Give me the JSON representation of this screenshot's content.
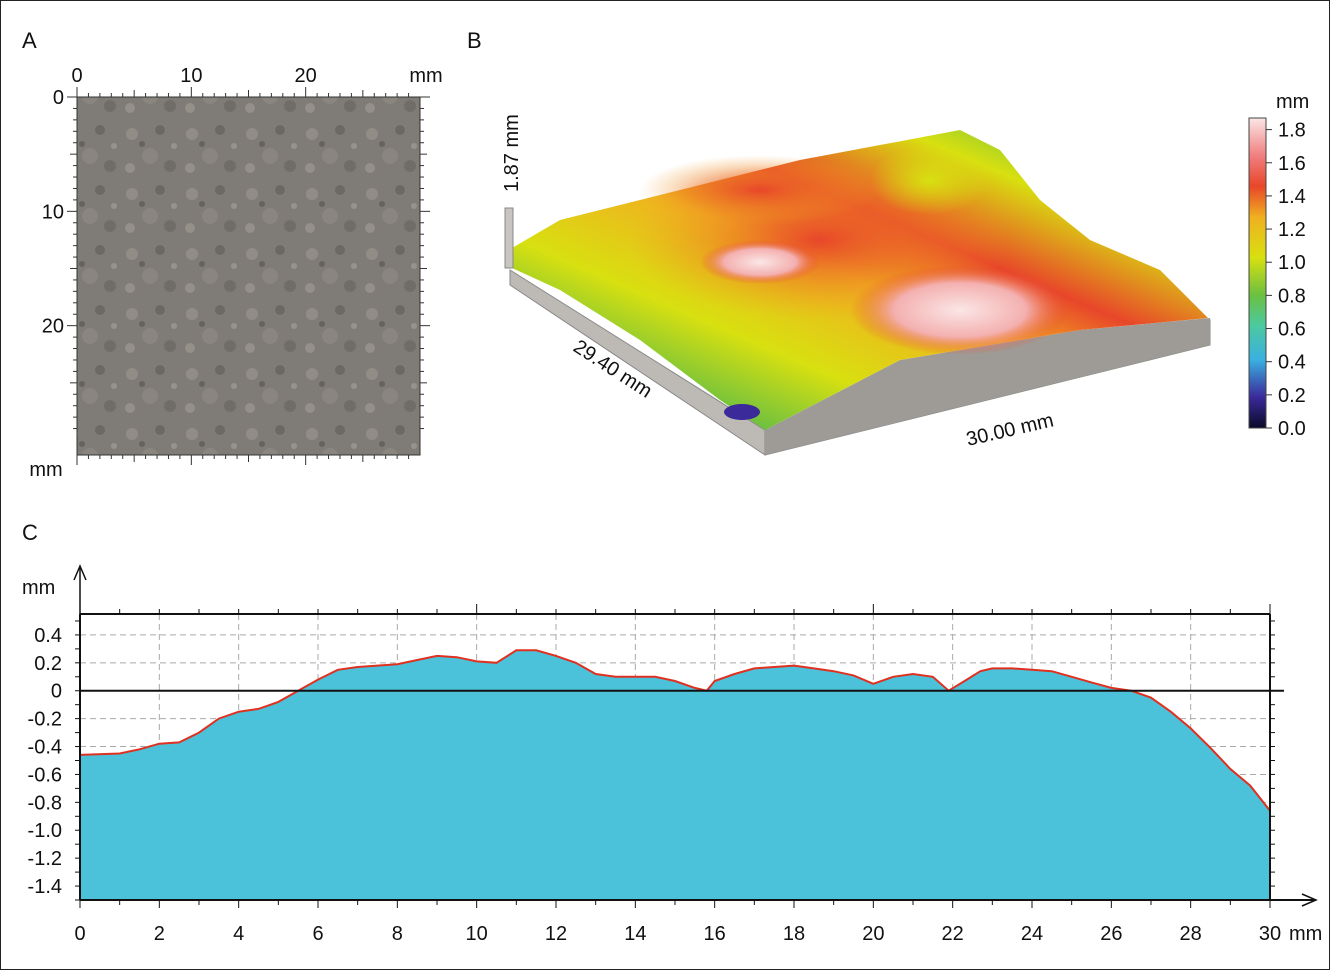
{
  "chart_data": [
    {
      "panel": "A",
      "type": "image",
      "x_ticks": [
        "0",
        "10",
        "20"
      ],
      "y_ticks": [
        "0",
        "10",
        "20"
      ],
      "unit_top": "mm",
      "unit_bottom": "mm",
      "xlim": [
        0,
        30
      ],
      "ylim": [
        0,
        30
      ]
    },
    {
      "panel": "B",
      "type": "heatmap",
      "height_label": "1.87 mm",
      "length_label": "29.40 mm",
      "width_label": "30.00 mm",
      "colorbar_unit": "mm",
      "colorbar_ticks": [
        "0.0",
        "0.2",
        "0.4",
        "0.6",
        "0.8",
        "1.0",
        "1.2",
        "1.4",
        "1.6",
        "1.8"
      ],
      "colorbar_range": [
        0,
        1.87
      ],
      "colors": [
        "#0a0a2a",
        "#3b2a9a",
        "#3ab0e0",
        "#4cc9a0",
        "#6cc040",
        "#d8e010",
        "#f0b020",
        "#e8462a",
        "#f08080",
        "#fbe6e6"
      ]
    },
    {
      "panel": "C",
      "type": "area",
      "xlabel": "mm",
      "ylabel": "mm",
      "xlim": [
        0,
        30
      ],
      "ylim": [
        -1.5,
        0.55
      ],
      "x_ticks": [
        "0",
        "2",
        "4",
        "6",
        "8",
        "10",
        "12",
        "14",
        "16",
        "18",
        "20",
        "22",
        "24",
        "26",
        "28",
        "30"
      ],
      "y_ticks": [
        "0.4",
        "0.2",
        "0",
        "-0.2",
        "-0.4",
        "-0.6",
        "-0.8",
        "-1.0",
        "-1.2",
        "-1.4"
      ],
      "fill_color": "#4cc2da",
      "line_color": "#e03020",
      "grid": true,
      "x": [
        0,
        1,
        1.5,
        2,
        2.5,
        3,
        3.5,
        4,
        4.5,
        5,
        5.5,
        6,
        6.5,
        7,
        7.5,
        8,
        8.5,
        9,
        9.5,
        10,
        10.5,
        11,
        11.5,
        12,
        12.5,
        13,
        13.5,
        14,
        14.5,
        15,
        15.5,
        15.8,
        16,
        16.5,
        17,
        17.5,
        18,
        18.5,
        19,
        19.5,
        20,
        20.5,
        21,
        21.5,
        21.9,
        22.3,
        22.7,
        23,
        23.5,
        24,
        24.5,
        25,
        25.5,
        26,
        26.5,
        27,
        27.5,
        28,
        28.5,
        29,
        29.5,
        30
      ],
      "y": [
        -0.46,
        -0.45,
        -0.42,
        -0.38,
        -0.37,
        -0.3,
        -0.2,
        -0.15,
        -0.13,
        -0.08,
        0.0,
        0.08,
        0.15,
        0.17,
        0.18,
        0.19,
        0.22,
        0.25,
        0.24,
        0.21,
        0.2,
        0.29,
        0.29,
        0.25,
        0.2,
        0.12,
        0.1,
        0.1,
        0.1,
        0.07,
        0.02,
        0.0,
        0.07,
        0.12,
        0.16,
        0.17,
        0.18,
        0.16,
        0.14,
        0.11,
        0.05,
        0.1,
        0.12,
        0.1,
        0.0,
        0.07,
        0.14,
        0.16,
        0.16,
        0.15,
        0.14,
        0.1,
        0.06,
        0.02,
        0.0,
        -0.05,
        -0.15,
        -0.27,
        -0.41,
        -0.56,
        -0.68,
        -0.86
      ]
    }
  ],
  "panels": {
    "a": "A",
    "b": "B",
    "c": "C"
  }
}
